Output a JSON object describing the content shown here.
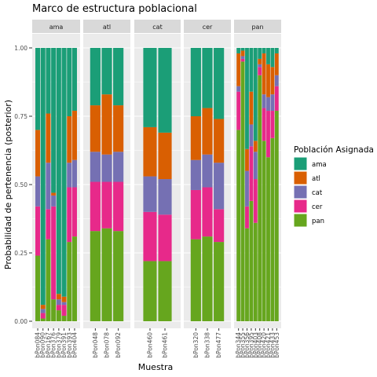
{
  "chart_data": {
    "type": "bar",
    "stacked": true,
    "faceted": true,
    "title": "Marco de estructura poblacional",
    "xlabel": "Muestra",
    "ylabel": "Probabilidad de pertenencia (posterior)",
    "ylim": [
      0,
      1
    ],
    "yticks": [
      "0.00",
      "0.25",
      "0.50",
      "0.75",
      "1.00"
    ],
    "grid": true,
    "legend": {
      "title": "Población Asignada",
      "position": "right",
      "stack_order": [
        "pan",
        "cer",
        "cat",
        "atl",
        "ama"
      ]
    },
    "series": [
      {
        "name": "ama",
        "color": "#1B9E77"
      },
      {
        "name": "atl",
        "color": "#D95F02"
      },
      {
        "name": "cat",
        "color": "#7570B3"
      },
      {
        "name": "cer",
        "color": "#E7298A"
      },
      {
        "name": "pan",
        "color": "#66A61E"
      }
    ],
    "facets": [
      {
        "label": "ama",
        "samples": [
          {
            "id": "bPon084",
            "ama": 0.3,
            "atl": 0.17,
            "cat": 0.11,
            "cer": 0.18,
            "pan": 0.24
          },
          {
            "id": "bPon090",
            "ama": 0.94,
            "atl": 0.015,
            "cat": 0.015,
            "cer": 0.02,
            "pan": 0.01
          },
          {
            "id": "bPon167",
            "ama": 0.24,
            "atl": 0.18,
            "cat": 0.17,
            "cer": 0.11,
            "pan": 0.3
          },
          {
            "id": "bPon376",
            "ama": 0.53,
            "atl": 0.01,
            "cat": 0.04,
            "cer": 0.34,
            "pan": 0.08
          },
          {
            "id": "bPon379",
            "ama": 0.9,
            "atl": 0.02,
            "cat": 0.02,
            "cer": 0.02,
            "pan": 0.04
          },
          {
            "id": "bPon391",
            "ama": 0.91,
            "atl": 0.02,
            "cat": 0.01,
            "cer": 0.04,
            "pan": 0.02
          },
          {
            "id": "bPon393",
            "ama": 0.25,
            "atl": 0.17,
            "cat": 0.09,
            "cer": 0.2,
            "pan": 0.29
          },
          {
            "id": "bPon404",
            "ama": 0.23,
            "atl": 0.18,
            "cat": 0.1,
            "cer": 0.18,
            "pan": 0.31
          }
        ]
      },
      {
        "label": "atl",
        "samples": [
          {
            "id": "bPon048",
            "ama": 0.21,
            "atl": 0.17,
            "cat": 0.11,
            "cer": 0.18,
            "pan": 0.33
          },
          {
            "id": "bPon078",
            "ama": 0.17,
            "atl": 0.22,
            "cat": 0.1,
            "cer": 0.17,
            "pan": 0.34
          },
          {
            "id": "bPon092",
            "ama": 0.21,
            "atl": 0.17,
            "cat": 0.11,
            "cer": 0.18,
            "pan": 0.33
          }
        ]
      },
      {
        "label": "cat",
        "samples": [
          {
            "id": "bPon460",
            "ama": 0.29,
            "atl": 0.18,
            "cat": 0.13,
            "cer": 0.18,
            "pan": 0.22
          },
          {
            "id": "bPon461",
            "ama": 0.31,
            "atl": 0.17,
            "cat": 0.13,
            "cer": 0.17,
            "pan": 0.22
          }
        ]
      },
      {
        "label": "cer",
        "samples": [
          {
            "id": "bPon320",
            "ama": 0.25,
            "atl": 0.16,
            "cat": 0.11,
            "cer": 0.18,
            "pan": 0.3
          },
          {
            "id": "bPon338",
            "ama": 0.22,
            "atl": 0.17,
            "cat": 0.12,
            "cer": 0.18,
            "pan": 0.31
          },
          {
            "id": "bPon477",
            "ama": 0.26,
            "atl": 0.16,
            "cat": 0.17,
            "cer": 0.12,
            "pan": 0.29
          }
        ]
      },
      {
        "label": "pan",
        "samples": [
          {
            "id": "bPon344",
            "ama": 0.02,
            "atl": 0.12,
            "cat": 0.02,
            "cer": 0.14,
            "pan": 0.7
          },
          {
            "id": "bPon355",
            "ama": 0.01,
            "atl": 0.02,
            "cat": 0.01,
            "cer": 0.01,
            "pan": 0.95
          },
          {
            "id": "bPon356",
            "ama": 0.37,
            "atl": 0.08,
            "cat": 0.13,
            "cer": 0.08,
            "pan": 0.34
          },
          {
            "id": "bPon395",
            "ama": 0.16,
            "atl": 0.12,
            "cat": 0.08,
            "cer": 0.2,
            "pan": 0.44
          },
          {
            "id": "bPon403",
            "ama": 0.34,
            "atl": 0.04,
            "cat": 0.1,
            "cer": 0.16,
            "pan": 0.36
          },
          {
            "id": "bPon408",
            "ama": 0.04,
            "atl": 0.02,
            "cat": 0.01,
            "cer": 0.03,
            "pan": 0.9
          },
          {
            "id": "bPon420",
            "ama": 0.02,
            "atl": 0.15,
            "cat": 0.05,
            "cer": 0.12,
            "pan": 0.66
          },
          {
            "id": "bPon421",
            "ama": 0.06,
            "atl": 0.12,
            "cat": 0.05,
            "cer": 0.17,
            "pan": 0.6
          },
          {
            "id": "bPon433",
            "ama": 0.07,
            "atl": 0.1,
            "cat": 0.06,
            "cer": 0.1,
            "pan": 0.67
          },
          {
            "id": "bPon453",
            "ama": 0.02,
            "atl": 0.08,
            "cat": 0.04,
            "cer": 0.09,
            "pan": 0.77
          }
        ]
      }
    ]
  }
}
